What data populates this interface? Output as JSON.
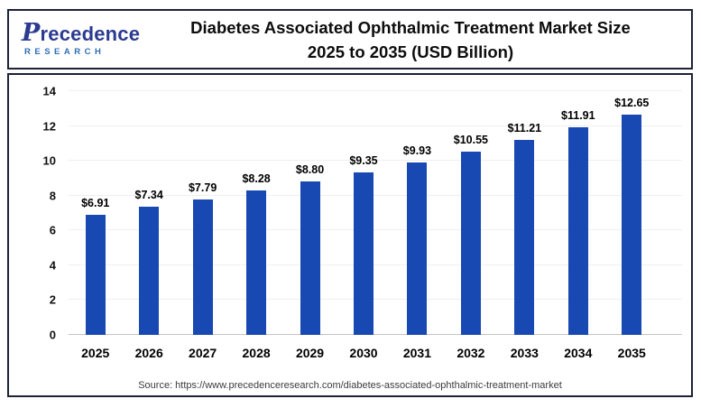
{
  "logo": {
    "initial": "P",
    "name_rest": "recedence",
    "sub": "RESEARCH"
  },
  "header": {
    "title_line1": "Diabetes Associated Ophthalmic Treatment Market Size",
    "title_line2": "2025 to 2035 (USD Billion)"
  },
  "footer": {
    "source": "Source: https://www.precedenceresearch.com/diabetes-associated-ophthalmic-treatment-market"
  },
  "colors": {
    "bar": "#1848b2",
    "box_border": "#1d2237",
    "logo_primary": "#2b3a91",
    "logo_secondary": "#2e6db4",
    "gridline": "#efefef",
    "baseline": "#c4c4c4"
  },
  "chart_data": {
    "type": "bar",
    "title": "Diabetes Associated Ophthalmic Treatment Market Size 2025 to 2035 (USD Billion)",
    "xlabel": "",
    "ylabel": "",
    "categories": [
      "2025",
      "2026",
      "2027",
      "2028",
      "2029",
      "2030",
      "2031",
      "2032",
      "2033",
      "2034",
      "2035"
    ],
    "values": [
      6.91,
      7.34,
      7.79,
      8.28,
      8.8,
      9.35,
      9.93,
      10.55,
      11.21,
      11.91,
      12.65
    ],
    "value_labels": [
      "$6.91",
      "$7.34",
      "$7.79",
      "$8.28",
      "$8.80",
      "$9.35",
      "$9.93",
      "$10.55",
      "$11.21",
      "$11.91",
      "$12.65"
    ],
    "ylim": [
      0,
      14
    ],
    "ytick_step": 2,
    "grid": true,
    "legend": false,
    "bar_color": "#1848b2"
  }
}
